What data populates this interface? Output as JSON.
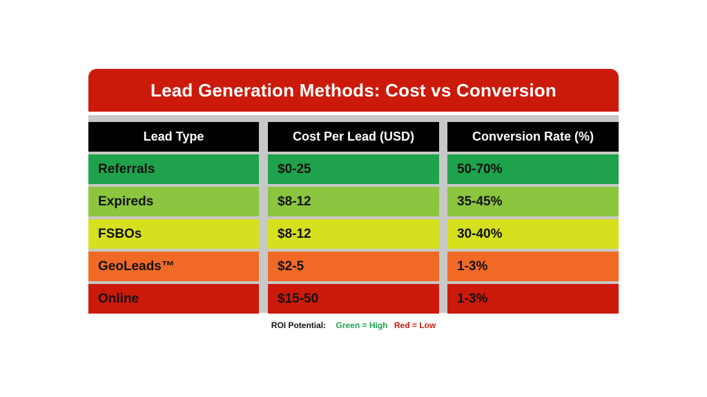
{
  "chart_data": {
    "type": "table",
    "title": "Lead Generation Methods: Cost vs Conversion",
    "columns": [
      "Lead Type",
      "Cost Per Lead (USD)",
      "Conversion Rate (%)"
    ],
    "rows": [
      {
        "cells": [
          "Referrals",
          "$0-25",
          "50-70%"
        ],
        "color": "#1ea34c"
      },
      {
        "cells": [
          "Expireds",
          "$8-12",
          "35-45%"
        ],
        "color": "#8cc540"
      },
      {
        "cells": [
          "FSBOs",
          "$8-12",
          "30-40%"
        ],
        "color": "#d6e01f"
      },
      {
        "cells": [
          "GeoLeads™",
          "$2-5",
          "1-3%"
        ],
        "color": "#f06a25"
      },
      {
        "cells": [
          "Online",
          "$15-50",
          "1-3%"
        ],
        "color": "#cc1a0a"
      }
    ]
  },
  "legend": {
    "label": "ROI Potential:",
    "high": "Green = High",
    "low": "Red = Low",
    "high_color": "#1ea34c",
    "low_color": "#cc1a0a"
  }
}
